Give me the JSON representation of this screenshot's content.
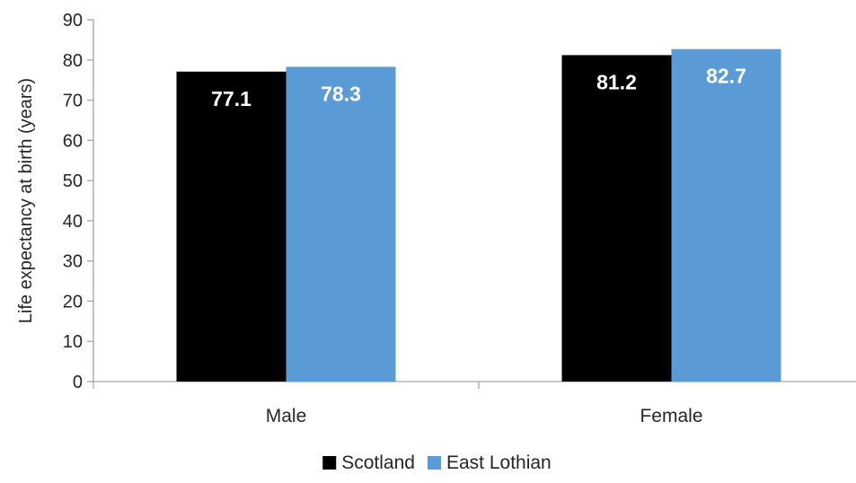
{
  "chart_data": {
    "type": "bar",
    "title": "",
    "xlabel": "",
    "ylabel": "Life expectancy at birth (years)",
    "categories": [
      "Male",
      "Female"
    ],
    "series": [
      {
        "name": "Scotland",
        "values": [
          77.1,
          81.2
        ],
        "labels": [
          "77.1",
          "81.2"
        ],
        "color": "#000000"
      },
      {
        "name": "East Lothian",
        "values": [
          78.3,
          82.7
        ],
        "labels": [
          "78.3",
          "82.7"
        ],
        "color": "#5b9bd5"
      }
    ],
    "ylim": [
      0,
      90
    ],
    "yticks": [
      0,
      10,
      20,
      30,
      40,
      50,
      60,
      70,
      80,
      90
    ],
    "yticklabels": [
      "0",
      "10",
      "20",
      "30",
      "40",
      "50",
      "60",
      "70",
      "80",
      "90"
    ],
    "grid": false,
    "legend": "bottom",
    "axis_color": "#a6a6a6"
  }
}
